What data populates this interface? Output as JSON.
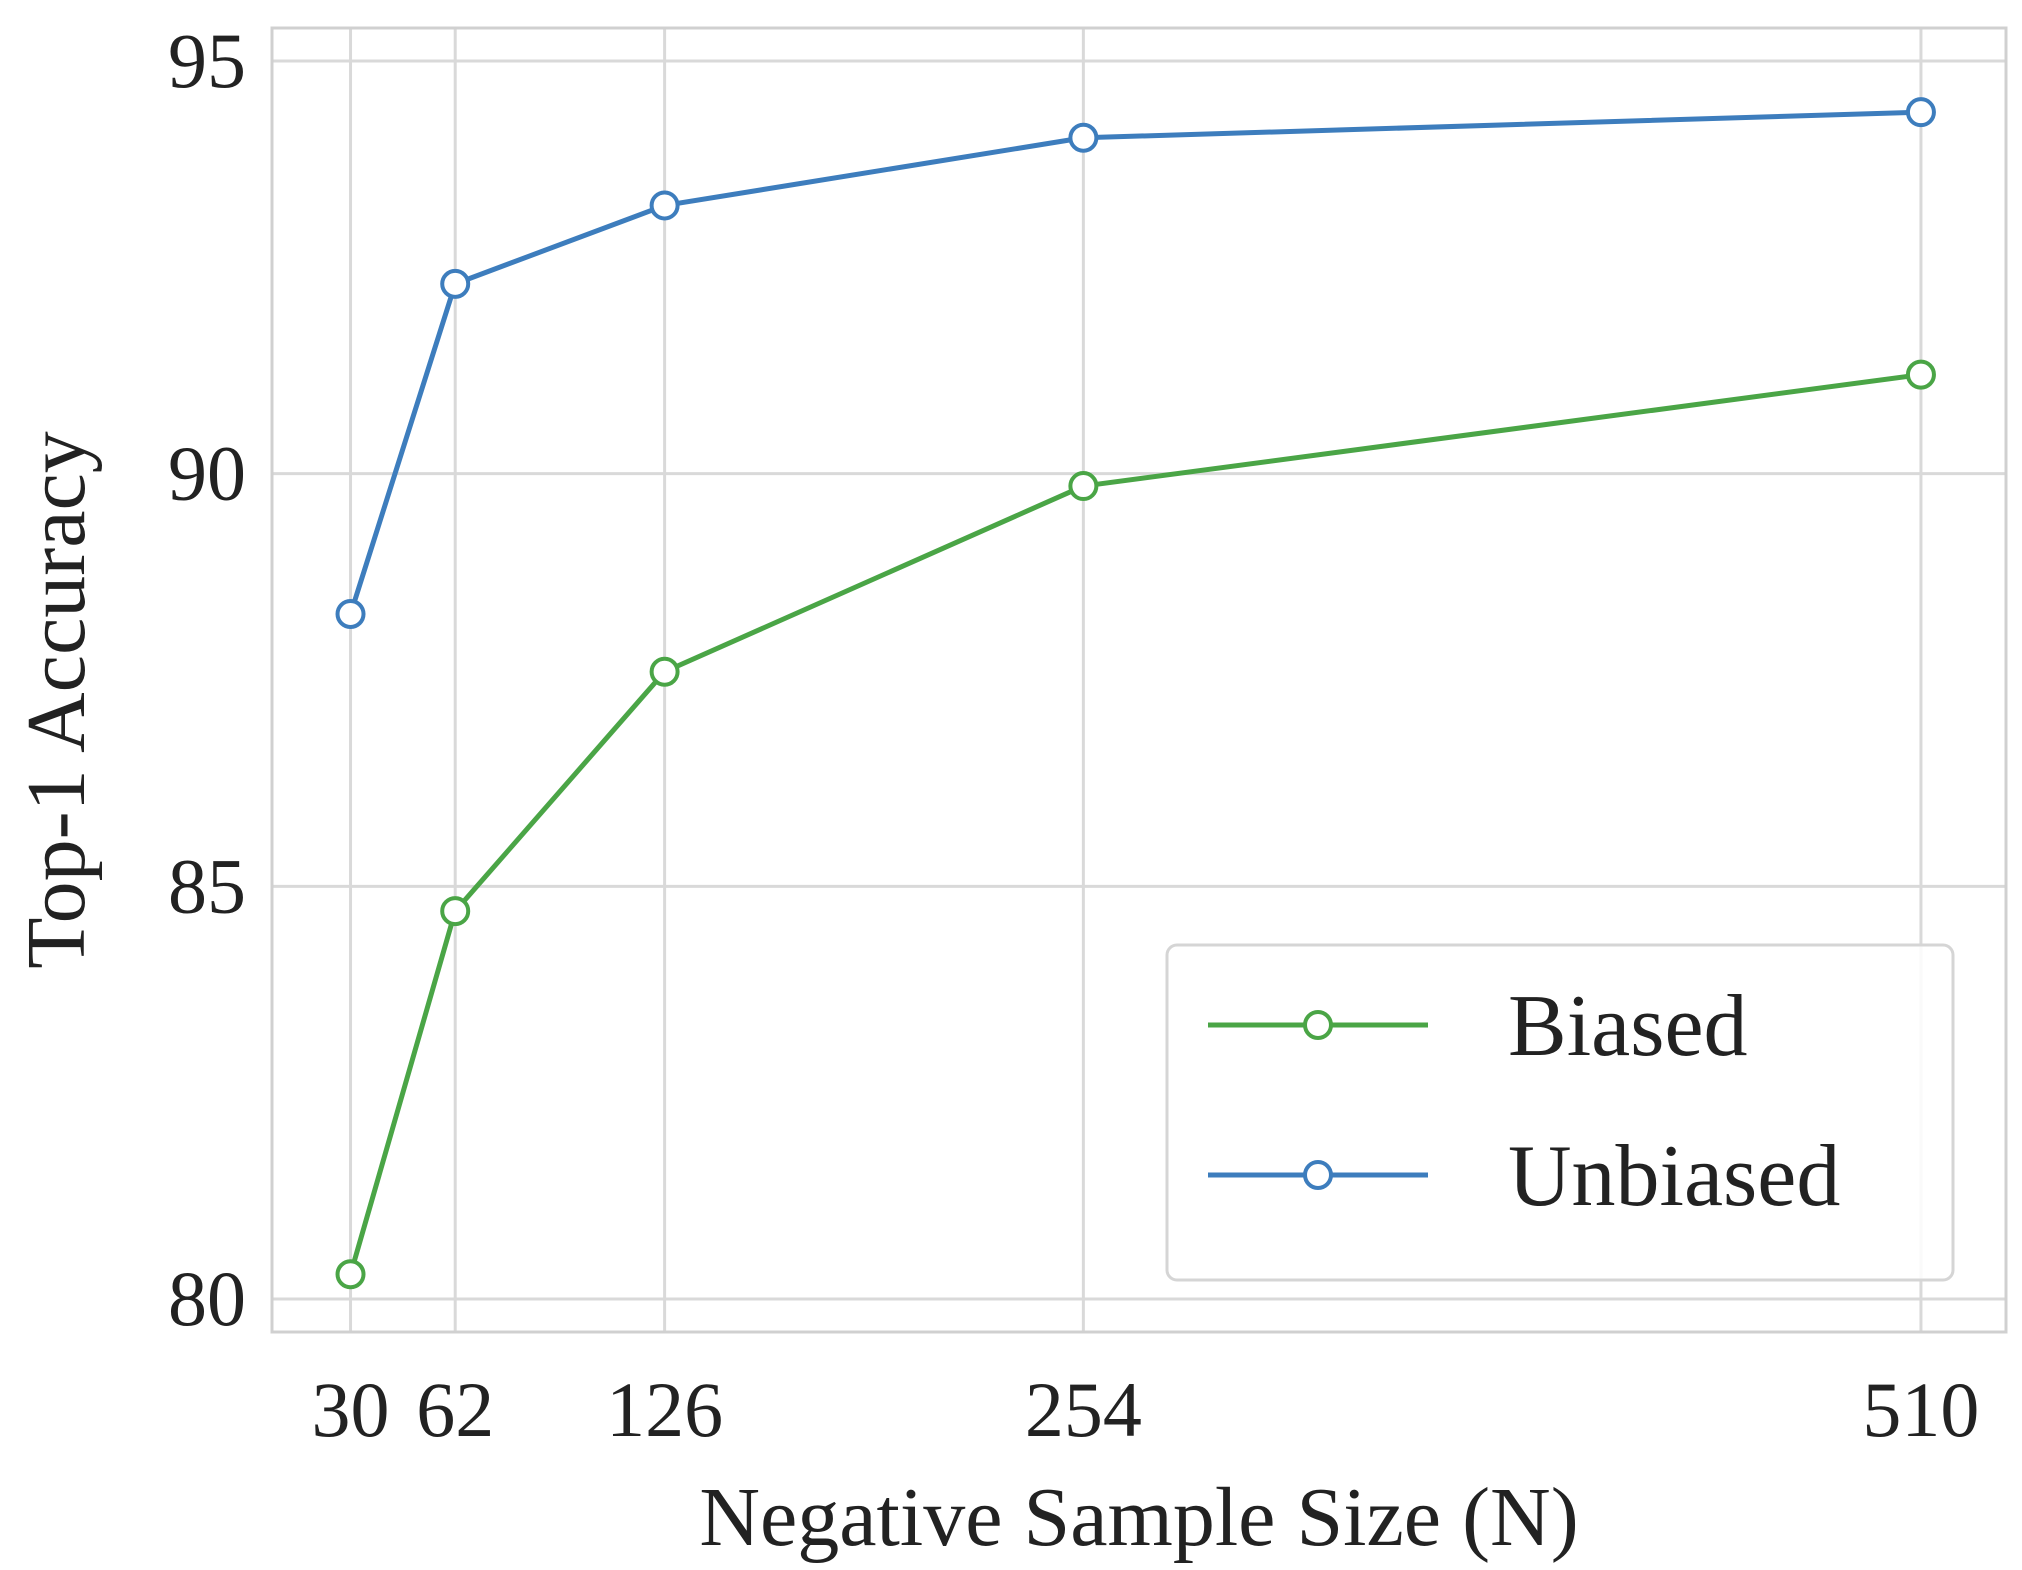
{
  "chart_data": {
    "type": "line",
    "xlabel": "Negative Sample Size (N)",
    "ylabel": "Top-1 Accuracy",
    "x": [
      30,
      62,
      126,
      254,
      510
    ],
    "x_tick_labels": [
      "30",
      "62",
      "126",
      "254",
      "510"
    ],
    "y_ticks": [
      80,
      85,
      90,
      95
    ],
    "y_tick_labels": [
      "80",
      "85",
      "90",
      "95"
    ],
    "xlim": [
      6,
      536
    ],
    "ylim": [
      79.6,
      95.4
    ],
    "grid": true,
    "legend_position": "lower-right",
    "series": [
      {
        "name": "Biased",
        "color": "#4aa546",
        "values": [
          80.3,
          84.7,
          87.6,
          89.85,
          91.2
        ]
      },
      {
        "name": "Unbiased",
        "color": "#3d7dbd",
        "values": [
          88.3,
          92.3,
          93.25,
          94.07,
          94.38
        ]
      }
    ],
    "marker": "hollow-circle"
  }
}
